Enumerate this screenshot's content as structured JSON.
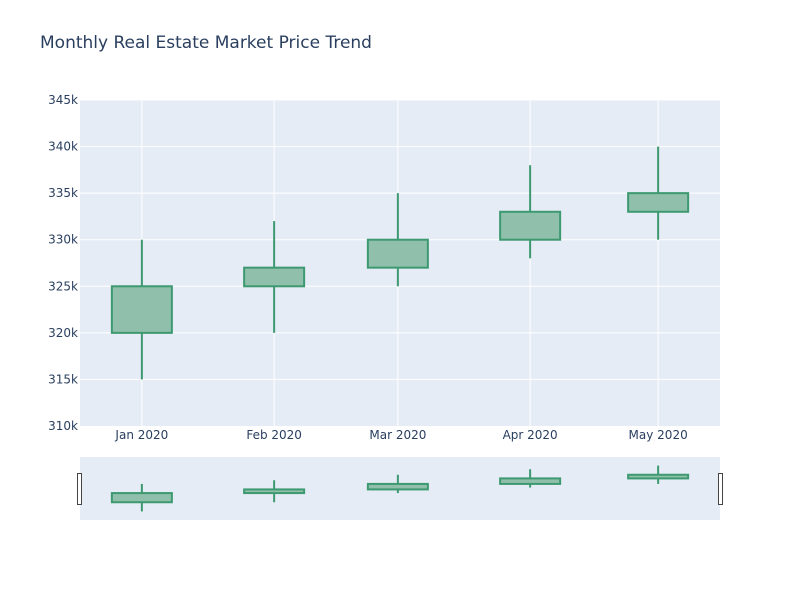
{
  "chart_data": {
    "type": "candlestick",
    "title": "Monthly Real Estate Market Price Trend",
    "categories": [
      "Jan 2020",
      "Feb 2020",
      "Mar 2020",
      "Apr 2020",
      "May 2020"
    ],
    "x_dates": [
      "2020-01-01",
      "2020-02-01",
      "2020-03-01",
      "2020-04-01",
      "2020-05-01"
    ],
    "open": [
      320000,
      325000,
      327000,
      330000,
      333000
    ],
    "high": [
      330000,
      332000,
      335000,
      338000,
      340000
    ],
    "low": [
      315000,
      320000,
      325000,
      328000,
      330000
    ],
    "close": [
      325000,
      327000,
      330000,
      333000,
      335000
    ],
    "ylim": [
      310000,
      345000
    ],
    "y_ticks": [
      310000,
      315000,
      320000,
      325000,
      330000,
      335000,
      340000,
      345000
    ],
    "y_tick_labels": [
      "310k",
      "315k",
      "320k",
      "325k",
      "330k",
      "335k",
      "340k",
      "345k"
    ],
    "xlabel": "",
    "ylabel": "",
    "grid": true,
    "range_slider": true,
    "colors": {
      "increasing_line": "#3D9970",
      "increasing_fill": "#90C0AB",
      "plot_bg": "#E5ECF6",
      "grid": "#ffffff",
      "text": "#2a3f5f"
    }
  }
}
